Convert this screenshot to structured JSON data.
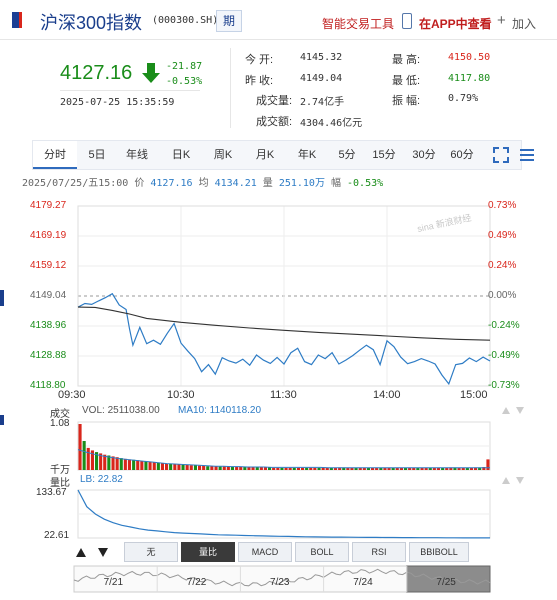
{
  "header": {
    "title": "沪深300指数",
    "code": "(000300.SH)",
    "period_button": "期",
    "tool_link": "智能交易工具",
    "app_link": "在APP中查看",
    "add_icon": "+",
    "add_label": "加入"
  },
  "quote": {
    "price": "4127.16",
    "change": "-21.87",
    "change_pct": "-0.53%",
    "datetime": "2025-07-25 15:35:59"
  },
  "stats": {
    "open_label": "今    开:",
    "open": "4145.32",
    "prev_close_label": "昨    收:",
    "prev_close": "4149.04",
    "volume_label": "成交量:",
    "volume": "2.74亿手",
    "amount_label": "成交额:",
    "amount": "4304.46亿元",
    "high_label": "最    高:",
    "high": "4150.50",
    "low_label": "最    低:",
    "low": "4117.80",
    "amplitude_label": "振    幅:",
    "amplitude": "0.79%"
  },
  "tabs": [
    {
      "label": "分时",
      "active": true
    },
    {
      "label": "5日"
    },
    {
      "label": "年线"
    },
    {
      "label": "日K"
    },
    {
      "label": "周K"
    },
    {
      "label": "月K"
    },
    {
      "label": "年K"
    },
    {
      "label": "5分"
    },
    {
      "label": "15分"
    },
    {
      "label": "30分"
    },
    {
      "label": "60分"
    }
  ],
  "info_line": {
    "date": "2025/07/25/五15:00",
    "price_label": "价",
    "price": "4127.16",
    "avg_label": "均",
    "avg": "4134.21",
    "vol_label": "量",
    "vol": "251.10万",
    "amp_label": "幅",
    "amp": "-0.53%"
  },
  "watermark": "sina 新浪财经",
  "chart_data": {
    "type": "line",
    "y_left_ticks": [
      "4179.27",
      "4169.19",
      "4159.12",
      "4149.04",
      "4138.96",
      "4128.88",
      "4118.80"
    ],
    "y_right_ticks": [
      "0.73%",
      "0.49%",
      "0.24%",
      "0.00%",
      "-0.24%",
      "-0.49%",
      "-0.73%"
    ],
    "x_ticks": [
      "09:30",
      "10:30",
      "11:30",
      "14:00",
      "15:00"
    ],
    "prev_close": 4149.04,
    "ylim": [
      4118.8,
      4179.27
    ],
    "series": [
      {
        "name": "价",
        "color": "#2e7cc5",
        "x": [
          0,
          4,
          8,
          12,
          16,
          20,
          24,
          28,
          30,
          32,
          36,
          40,
          44,
          48,
          52,
          56,
          60,
          64,
          68,
          72,
          76,
          80,
          84,
          88,
          92,
          96,
          100,
          104,
          108,
          112,
          116,
          120,
          124,
          128,
          132,
          136,
          140,
          144,
          148,
          152,
          156,
          160,
          164,
          168,
          172,
          176,
          180,
          184,
          188,
          192,
          196,
          200,
          204,
          208,
          212,
          216,
          220,
          224,
          228,
          232,
          236,
          240
        ],
        "values": [
          4145.3,
          4146.5,
          4146.2,
          4147.4,
          4148.5,
          4149.8,
          4146.0,
          4144.5,
          4138.0,
          4132.5,
          4138.5,
          4133.0,
          4134.2,
          4132.8,
          4136.5,
          4139.8,
          4133.2,
          4130.5,
          4128.0,
          4123.6,
          4126.0,
          4122.8,
          4128.3,
          4127.2,
          4126.5,
          4127.8,
          4125.8,
          4129.2,
          4127.5,
          4126.4,
          4128.4,
          4126.2,
          4130.0,
          4131.5,
          4127.0,
          4126.0,
          4129.2,
          4128.0,
          4130.0,
          4126.2,
          4127.5,
          4129.0,
          4130.8,
          4132.5,
          4131.0,
          4126.0,
          4134.0,
          4132.0,
          4128.5,
          4126.3,
          4127.0,
          4128.0,
          4127.2,
          4126.2,
          4122.5,
          4119.5,
          4126.0,
          4126.4,
          4128.2,
          4127.0,
          4128.5,
          4127.2
        ]
      },
      {
        "name": "均",
        "color": "#333333",
        "x": [
          0,
          10,
          20,
          30,
          40,
          60,
          80,
          100,
          120,
          140,
          160,
          180,
          200,
          220,
          240
        ],
        "values": [
          4145.3,
          4145.2,
          4144.2,
          4143.0,
          4141.5,
          4140.2,
          4139.2,
          4138.3,
          4137.5,
          4136.8,
          4136.2,
          4135.6,
          4135.0,
          4134.5,
          4134.2
        ]
      }
    ]
  },
  "volume_chart": {
    "title": "成交",
    "vol_label": "VOL: 2511038.00",
    "ma_label": "MA10: 1140118.20",
    "y_top": "1.08",
    "unit": "千万",
    "values": [
      10.8,
      6.8,
      5.2,
      4.6,
      4.2,
      3.9,
      3.6,
      3.4,
      3.2,
      3.0,
      2.8,
      2.6,
      2.5,
      2.4,
      2.3,
      2.1,
      2.0,
      1.9,
      1.8,
      1.7,
      1.6,
      1.5,
      1.4,
      1.4,
      1.3,
      1.2,
      1.2,
      1.1,
      1.1,
      1.0,
      1.0,
      0.9,
      0.9,
      0.9,
      0.8,
      0.8,
      0.8,
      0.7,
      0.7,
      0.7,
      0.7,
      0.6,
      0.6,
      0.6,
      0.6,
      0.6,
      0.6,
      0.5,
      0.5,
      0.5,
      0.5,
      0.5,
      0.5,
      0.5,
      0.5,
      0.5,
      0.5,
      0.5,
      0.5,
      0.5,
      0.5,
      0.5,
      0.5,
      0.6,
      0.6,
      0.5,
      0.5,
      0.5,
      0.5,
      0.5,
      0.5,
      0.5,
      0.5,
      0.5,
      0.5,
      0.5,
      0.5,
      0.5,
      0.5,
      0.5,
      0.5,
      0.5,
      0.5,
      0.5,
      0.5,
      0.5,
      0.5,
      0.5,
      0.5,
      0.5,
      0.6,
      0.6,
      0.5,
      0.5,
      0.5,
      0.5,
      0.6,
      0.6,
      0.7,
      2.5
    ],
    "ma": [
      4.8,
      4.2,
      3.7,
      3.3,
      3.0,
      2.7,
      2.5,
      2.3,
      2.1,
      1.9,
      1.7,
      1.5,
      1.4,
      1.3,
      1.2,
      1.1,
      1.0,
      0.9,
      0.9,
      0.8,
      0.8,
      0.7,
      0.7,
      0.7,
      0.6,
      0.6,
      0.6,
      0.6,
      0.6,
      0.6,
      0.6,
      0.55,
      0.55,
      0.55,
      0.55,
      0.55,
      0.55,
      0.55,
      0.55,
      0.55,
      0.55,
      0.55,
      0.55,
      0.55,
      0.55,
      0.55,
      0.55,
      0.55,
      0.55,
      0.55,
      0.55,
      0.55
    ]
  },
  "ratio_chart": {
    "title": "量比",
    "lb_label": "LB: 22.82",
    "y_top": "133.67",
    "y_bottom": "22.61",
    "values": [
      133.67,
      95,
      78,
      66,
      58,
      52,
      48,
      44,
      41,
      39,
      37,
      35,
      34,
      33,
      32,
      31,
      30,
      29.5,
      29,
      28.5,
      28,
      27.5,
      27,
      26.6,
      26.2,
      25.8,
      25.5,
      25.2,
      25,
      24.8,
      24.6,
      24.4,
      24.2,
      24,
      23.9,
      23.8,
      23.7,
      23.6,
      23.5,
      23.4,
      23.3,
      23.2,
      23.1,
      23,
      22.95,
      22.9,
      22.85,
      22.82
    ]
  },
  "indicators": [
    "无",
    "量比",
    "MACD",
    "BOLL",
    "RSI",
    "BBIBOLL"
  ],
  "navigator": {
    "labels": [
      "7/21",
      "7/22",
      "7/23",
      "7/24",
      "7/25"
    ]
  }
}
